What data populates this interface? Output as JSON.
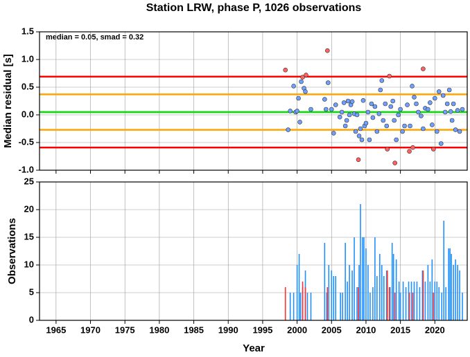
{
  "chart_data": [
    {
      "type": "scatter",
      "title": "Station LRW, phase P, 1026 observations",
      "ylabel": "Median residual [s]",
      "annotation": "median = 0.05, smad = 0.32",
      "xlim": [
        1962.6,
        2024.7
      ],
      "ylim": [
        -1.0,
        1.5
      ],
      "yticks": [
        {
          "value": -1.0,
          "label": "-1.0"
        },
        -0.5,
        {
          "value": 0.0,
          "label": "0.0"
        },
        0.5,
        {
          "value": 1.0,
          "label": "1.0"
        },
        1.5
      ],
      "grid": true,
      "reference_lines": [
        {
          "value": 0.69,
          "color": "#ff0000"
        },
        {
          "value": 0.37,
          "color": "#ffa500"
        },
        {
          "value": 0.05,
          "color": "#00e000"
        },
        {
          "value": -0.27,
          "color": "#ffa500"
        },
        {
          "value": -0.59,
          "color": "#ff0000"
        }
      ],
      "series": [
        {
          "color": "#6fa0ff",
          "x": [
            1998.7,
            1999.0,
            1999.5,
            1999.8,
            2000.0,
            2000.2,
            2000.4,
            2000.6,
            2001.0,
            2001.2,
            2002.0,
            2004.0,
            2004.2,
            2004.5,
            2005.0,
            2005.3,
            2005.6,
            2006.2,
            2006.5,
            2006.8,
            2007.0,
            2007.2,
            2007.4,
            2007.6,
            2007.8,
            2008.0,
            2008.3,
            2008.5,
            2008.7,
            2009.0,
            2009.2,
            2009.4,
            2009.6,
            2009.8,
            2010.0,
            2010.3,
            2010.5,
            2010.8,
            2011.0,
            2011.3,
            2011.6,
            2011.9,
            2012.1,
            2012.3,
            2012.5,
            2012.8,
            2013.0,
            2013.6,
            2013.9,
            2014.1,
            2014.4,
            2014.7,
            2015.0,
            2015.3,
            2015.6,
            2016.0,
            2016.4,
            2016.7,
            2017.0,
            2017.3,
            2017.6,
            2018.0,
            2018.3,
            2018.6,
            2019.0,
            2019.3,
            2019.6,
            2020.0,
            2020.3,
            2020.6,
            2020.9,
            2021.2,
            2021.5,
            2021.8,
            2022.1,
            2022.3,
            2022.5,
            2022.7,
            2023.0,
            2023.3,
            2023.6,
            2024.0
          ],
          "values": [
            -0.27,
            0.07,
            0.52,
            0.05,
            0.07,
            0.3,
            -0.13,
            0.6,
            0.48,
            0.42,
            0.1,
            0.28,
            0.1,
            0.58,
            0.1,
            -0.33,
            0.18,
            -0.04,
            0.05,
            0.22,
            -0.2,
            -0.1,
            0.25,
            0.0,
            0.18,
            0.24,
            0.02,
            -0.3,
            0.0,
            -0.38,
            -0.25,
            -0.45,
            0.26,
            -0.2,
            -0.15,
            0.05,
            -0.45,
            0.2,
            -0.05,
            0.15,
            -0.3,
            0.02,
            0.45,
            0.62,
            -0.1,
            0.2,
            -0.2,
            0.15,
            0.25,
            -0.1,
            -0.45,
            0.0,
            0.1,
            -0.3,
            -0.2,
            0.18,
            -0.2,
            0.52,
            0.32,
            0.2,
            0.05,
            -0.02,
            -0.25,
            0.12,
            0.1,
            0.22,
            -0.18,
            0.3,
            -0.3,
            0.42,
            -0.52,
            0.35,
            0.05,
            0.2,
            0.45,
            0.06,
            -0.1,
            0.2,
            -0.27,
            0.08,
            -0.3,
            0.1
          ]
        },
        {
          "color": "#ff6060",
          "x": [
            1998.3,
            2000.8,
            2001.3,
            2004.4,
            2008.9,
            2013.4,
            2013.1,
            2014.2,
            2016.3,
            2016.8,
            2018.3,
            2019.8
          ],
          "values": [
            0.81,
            0.68,
            0.72,
            1.16,
            -0.81,
            0.7,
            -0.62,
            -0.87,
            -0.66,
            -0.59,
            0.83,
            -0.62
          ]
        }
      ]
    },
    {
      "type": "bar",
      "xlabel": "Year",
      "ylabel": "Observations",
      "xlim": [
        1962.6,
        2024.7
      ],
      "ylim": [
        0,
        25
      ],
      "xticks": [
        1965,
        1970,
        1975,
        1980,
        1985,
        1990,
        1995,
        2000,
        2005,
        2010,
        2015,
        2020
      ],
      "yticks": [
        0,
        5,
        10,
        15,
        20,
        25
      ],
      "grid": true,
      "series": [
        {
          "color": "#1e90ff",
          "x": [
            1999.0,
            1999.5,
            2000.0,
            2000.3,
            2000.5,
            2000.8,
            2001.2,
            2001.5,
            2002.0,
            2004.0,
            2004.3,
            2004.6,
            2005.0,
            2005.3,
            2005.6,
            2006.3,
            2006.6,
            2007.0,
            2007.3,
            2007.6,
            2008.0,
            2008.3,
            2008.7,
            2009.0,
            2009.2,
            2009.5,
            2009.7,
            2010.0,
            2010.3,
            2010.6,
            2011.0,
            2011.3,
            2011.6,
            2012.0,
            2012.3,
            2012.6,
            2013.0,
            2013.5,
            2013.8,
            2014.0,
            2014.4,
            2014.8,
            2015.0,
            2015.4,
            2015.8,
            2016.2,
            2016.6,
            2017.0,
            2017.4,
            2017.8,
            2018.2,
            2018.6,
            2019.0,
            2019.3,
            2019.6,
            2020.0,
            2020.3,
            2020.6,
            2021.0,
            2021.3,
            2021.6,
            2022.0,
            2022.2,
            2022.4,
            2022.7,
            2023.0,
            2023.3,
            2023.6,
            2024.0
          ],
          "values": [
            5,
            5,
            10,
            12,
            5,
            6,
            9,
            5,
            5,
            14,
            5,
            10,
            9,
            8,
            8,
            5,
            5,
            14,
            7,
            10,
            9,
            15,
            6,
            10,
            21,
            15,
            15,
            13,
            10,
            5,
            6,
            15,
            8,
            12,
            10,
            8,
            9,
            6,
            14,
            12,
            11,
            7,
            5,
            7,
            6,
            7,
            7,
            7,
            7,
            6,
            9,
            7,
            10,
            7,
            11,
            7,
            7,
            6,
            5,
            18,
            6,
            13,
            13,
            12,
            10,
            11,
            10,
            9,
            5
          ]
        },
        {
          "color": "#ff3030",
          "x": [
            1998.3,
            2000.8,
            2001.2,
            2004.4,
            2008.9,
            2013.1,
            2013.4,
            2014.2,
            2016.3,
            2016.8,
            2018.3,
            2019.8
          ],
          "values": [
            6,
            7,
            6,
            6,
            6,
            9,
            6,
            5,
            5,
            5,
            9,
            5
          ]
        }
      ]
    }
  ]
}
